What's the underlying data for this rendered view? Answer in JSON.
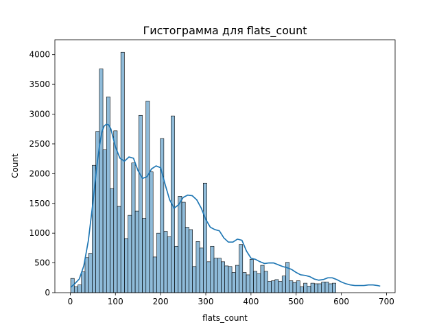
{
  "chart_data": {
    "type": "bar",
    "title": "Гистограмма для flats_count",
    "xlabel": "flats_count",
    "ylabel": "Count",
    "xlim": [
      -34,
      719
    ],
    "ylim": [
      0,
      4250
    ],
    "xticks": [
      0,
      100,
      200,
      300,
      400,
      500,
      600,
      700
    ],
    "yticks": [
      0,
      500,
      1000,
      1500,
      2000,
      2500,
      3000,
      3500,
      4000
    ],
    "grid": false,
    "legend": "none",
    "bin_start": 1,
    "bin_width": 7.93,
    "counts": [
      240,
      100,
      130,
      350,
      590,
      660,
      2140,
      2710,
      3760,
      2400,
      3290,
      1750,
      2720,
      1450,
      4040,
      910,
      1300,
      2180,
      1370,
      2980,
      1250,
      3220,
      2030,
      600,
      1000,
      2590,
      1030,
      940,
      2970,
      780,
      1620,
      1520,
      1100,
      1060,
      440,
      860,
      750,
      1840,
      520,
      780,
      580,
      580,
      520,
      450,
      440,
      340,
      460,
      810,
      340,
      300,
      560,
      360,
      320,
      460,
      360,
      190,
      200,
      220,
      190,
      280,
      510,
      200,
      170,
      200,
      100,
      160,
      110,
      160,
      150,
      150,
      180,
      180,
      150,
      160
    ],
    "kde": {
      "x": [
        1,
        10,
        20,
        30,
        40,
        50,
        60,
        65,
        70,
        75,
        80,
        85,
        90,
        95,
        100,
        110,
        120,
        130,
        140,
        150,
        160,
        170,
        180,
        190,
        200,
        210,
        220,
        230,
        240,
        250,
        260,
        270,
        280,
        290,
        300,
        310,
        320,
        330,
        340,
        350,
        360,
        370,
        380,
        390,
        400,
        410,
        420,
        430,
        440,
        450,
        460,
        470,
        480,
        490,
        500,
        510,
        520,
        530,
        540,
        550,
        560,
        570,
        580,
        590,
        600,
        610,
        620,
        630,
        640,
        650,
        660,
        670,
        680,
        686
      ],
      "y": [
        90,
        150,
        230,
        450,
        870,
        1500,
        2200,
        2480,
        2700,
        2800,
        2830,
        2820,
        2750,
        2600,
        2450,
        2260,
        2210,
        2280,
        2260,
        2050,
        1920,
        1950,
        2080,
        2130,
        2100,
        1820,
        1560,
        1420,
        1480,
        1600,
        1640,
        1630,
        1560,
        1420,
        1230,
        1100,
        1060,
        1040,
        920,
        850,
        850,
        900,
        880,
        700,
        580,
        560,
        520,
        490,
        500,
        500,
        470,
        440,
        420,
        390,
        340,
        300,
        290,
        270,
        230,
        210,
        220,
        250,
        250,
        220,
        180,
        150,
        130,
        120,
        120,
        120,
        130,
        130,
        120,
        110
      ]
    },
    "colors": {
      "bar_fill": "#1f77b4",
      "bar_fill_opacity": 0.5,
      "bar_edge": "#000000",
      "kde_line": "#1f77b4"
    }
  }
}
